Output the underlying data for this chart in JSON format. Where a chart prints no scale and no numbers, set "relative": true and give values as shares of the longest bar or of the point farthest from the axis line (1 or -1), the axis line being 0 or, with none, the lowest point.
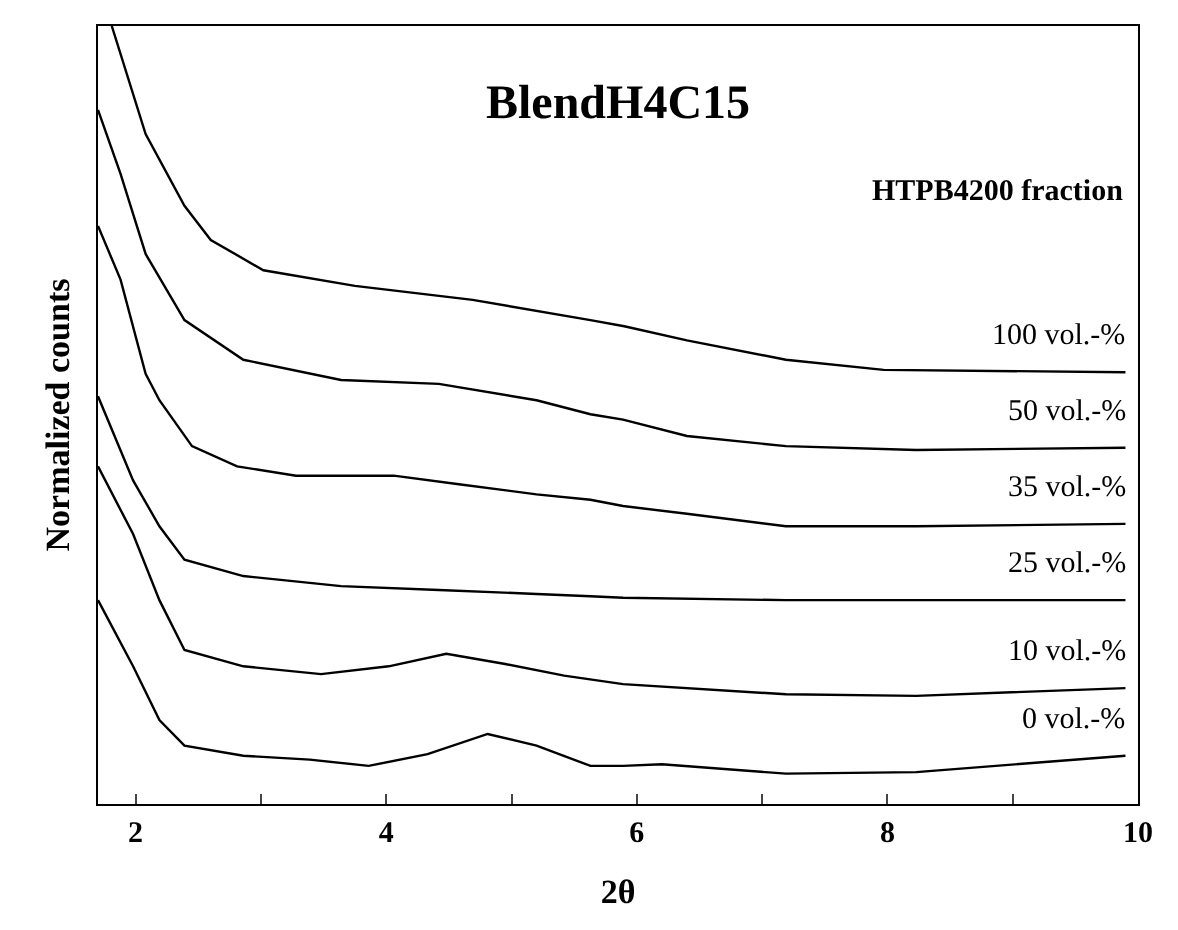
{
  "chart_data": {
    "type": "line",
    "title": "BlendH4C15",
    "xlabel": "2θ",
    "ylabel": "Normalized counts",
    "legend_title": "HTPB4200 fraction",
    "relative": true,
    "legend": false,
    "marker": "none",
    "line_style": "solid",
    "xlim": [
      1.7,
      10
    ],
    "xticks": [
      2,
      {
        "value": 3,
        "label": null
      },
      4,
      {
        "value": 5,
        "label": null
      },
      6,
      {
        "value": 7,
        "label": null
      },
      8,
      {
        "value": 9,
        "label": null
      },
      10
    ],
    "series": [
      {
        "name": "100 vol.-%",
        "color": "#000000",
        "x": [
          1.81,
          2.08,
          2.39,
          2.6,
          3.02,
          3.75,
          4.69,
          5.63,
          5.9,
          6.4,
          7.19,
          7.97,
          9.9
        ],
        "values": [
          1.0,
          0.861,
          0.769,
          0.725,
          0.686,
          0.666,
          0.648,
          0.622,
          0.614,
          0.596,
          0.571,
          0.558,
          0.555
        ]
      },
      {
        "name": "50 vol.-%",
        "color": "#000000",
        "x": [
          1.7,
          1.88,
          2.08,
          2.39,
          2.86,
          3.64,
          4.42,
          5.2,
          5.63,
          5.89,
          6.4,
          7.19,
          8.23,
          9.9
        ],
        "values": [
          0.892,
          0.81,
          0.707,
          0.622,
          0.571,
          0.545,
          0.54,
          0.519,
          0.501,
          0.494,
          0.473,
          0.46,
          0.455,
          0.458
        ]
      },
      {
        "name": "35 vol.-%",
        "color": "#000000",
        "x": [
          1.7,
          1.88,
          2.08,
          2.19,
          2.45,
          2.81,
          3.28,
          4.06,
          4.58,
          5.2,
          5.63,
          5.89,
          6.4,
          7.19,
          8.23,
          9.9
        ],
        "values": [
          0.743,
          0.674,
          0.553,
          0.519,
          0.46,
          0.434,
          0.422,
          0.422,
          0.411,
          0.398,
          0.391,
          0.383,
          0.373,
          0.357,
          0.357,
          0.36
        ]
      },
      {
        "name": "25 vol.-%",
        "color": "#000000",
        "x": [
          1.7,
          1.98,
          2.19,
          2.39,
          2.86,
          3.64,
          4.42,
          5.2,
          5.63,
          5.89,
          7.19,
          9.9
        ],
        "values": [
          0.524,
          0.416,
          0.357,
          0.314,
          0.293,
          0.28,
          0.275,
          0.27,
          0.267,
          0.265,
          0.262,
          0.262
        ]
      },
      {
        "name": "10 vol.-%",
        "color": "#000000",
        "x": [
          1.7,
          1.98,
          2.19,
          2.39,
          2.86,
          3.48,
          4.02,
          4.48,
          4.95,
          5.42,
          5.89,
          7.19,
          8.23,
          9.9
        ],
        "values": [
          0.434,
          0.347,
          0.262,
          0.198,
          0.177,
          0.167,
          0.177,
          0.193,
          0.18,
          0.165,
          0.154,
          0.141,
          0.139,
          0.149
        ]
      },
      {
        "name": "0 vol.-%",
        "color": "#000000",
        "x": [
          1.7,
          1.98,
          2.19,
          2.39,
          2.86,
          3.39,
          3.86,
          4.33,
          4.81,
          5.2,
          5.63,
          5.89,
          6.2,
          7.19,
          8.23,
          9.9
        ],
        "values": [
          0.262,
          0.177,
          0.108,
          0.075,
          0.062,
          0.057,
          0.049,
          0.064,
          0.09,
          0.075,
          0.049,
          0.049,
          0.051,
          0.039,
          0.041,
          0.062
        ]
      }
    ]
  }
}
